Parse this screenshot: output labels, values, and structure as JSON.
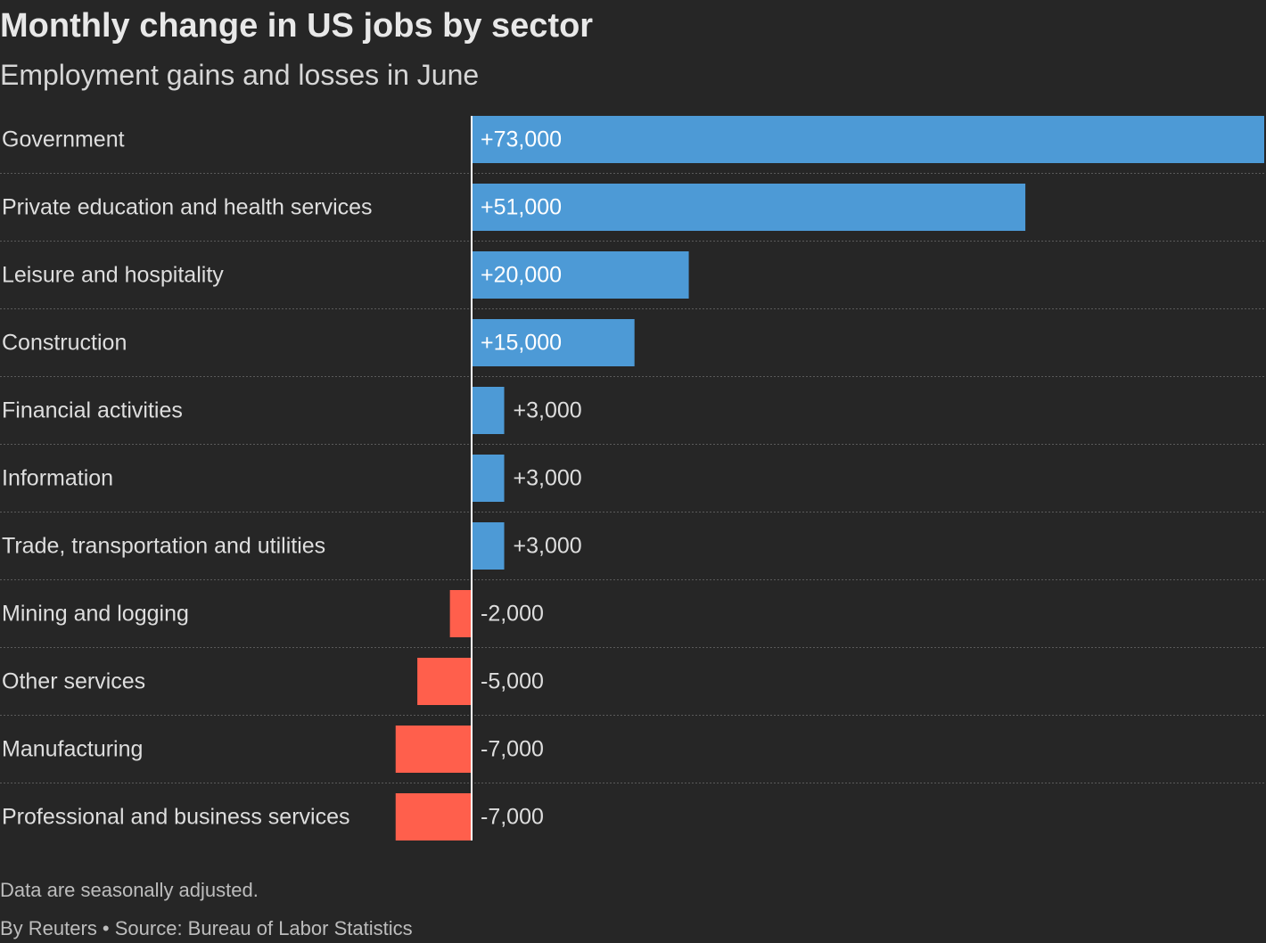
{
  "header": {
    "title": "Monthly change in US jobs by sector",
    "subtitle": "Employment gains and losses in June"
  },
  "footer": {
    "note": "Data are seasonally adjusted.",
    "credit": "By Reuters • Source: Bureau of Labor Statistics"
  },
  "colors": {
    "background": "#262626",
    "positive": "#4d9ad6",
    "negative": "#ff5f4c",
    "text": "#dedede",
    "gridline": "#5a5a5a",
    "zero_line": "#ffffff"
  },
  "chart_data": {
    "type": "bar",
    "orientation": "horizontal",
    "title": "Monthly change in US jobs by sector",
    "subtitle": "Employment gains and losses in June",
    "categories": [
      "Government",
      "Private education and health services",
      "Leisure and hospitality",
      "Construction",
      "Financial activities",
      "Information",
      "Trade, transportation and utilities",
      "Mining and logging",
      "Other services",
      "Manufacturing",
      "Professional and business services"
    ],
    "values": [
      73000,
      51000,
      20000,
      15000,
      3000,
      3000,
      3000,
      -2000,
      -5000,
      -7000,
      -7000
    ],
    "value_labels": [
      "+73,000",
      "+51,000",
      "+20,000",
      "+15,000",
      "+3,000",
      "+3,000",
      "+3,000",
      "-2,000",
      "-5,000",
      "-7,000",
      "-7,000"
    ],
    "xlim": [
      -7000,
      73000
    ],
    "grid": false,
    "legend": "none"
  }
}
